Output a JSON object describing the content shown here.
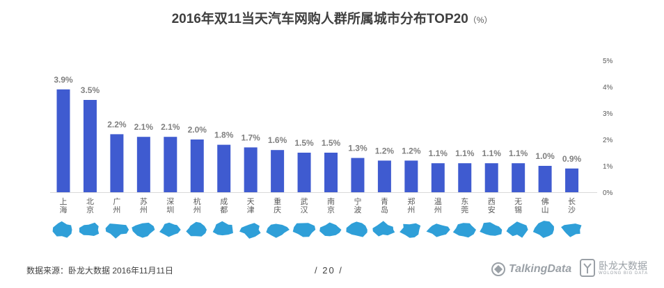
{
  "header": {
    "title": "2016年双11当天汽车网购人群所属城市分布TOP20",
    "unit": "（%）"
  },
  "chart_data": {
    "type": "bar",
    "categories": [
      "上海",
      "北京",
      "广州",
      "苏州",
      "深圳",
      "杭州",
      "成都",
      "天津",
      "重庆",
      "武汉",
      "南京",
      "宁波",
      "青岛",
      "郑州",
      "温州",
      "东莞",
      "西安",
      "无锡",
      "佛山",
      "长沙"
    ],
    "values": [
      3.9,
      3.5,
      2.2,
      2.1,
      2.1,
      2.0,
      1.8,
      1.7,
      1.6,
      1.5,
      1.5,
      1.3,
      1.2,
      1.2,
      1.1,
      1.1,
      1.1,
      1.1,
      1.0,
      0.9
    ],
    "data_labels": [
      "3.9%",
      "3.5%",
      "2.2%",
      "2.1%",
      "2.1%",
      "2.0%",
      "1.8%",
      "1.7%",
      "1.6%",
      "1.5%",
      "1.5%",
      "1.3%",
      "1.2%",
      "1.2%",
      "1.1%",
      "1.1%",
      "1.1%",
      "1.1%",
      "1.0%",
      "0.9%"
    ],
    "y_ticks": [
      "0%",
      "1%",
      "2%",
      "3%",
      "4%",
      "5%"
    ],
    "ylim": [
      0,
      5
    ],
    "y_axis_side": "right",
    "grid": false,
    "bar_color": "#3f5bd0",
    "map_color": "#2f9fd8"
  },
  "footer": {
    "source": "数据来源：卧龙大数据  2016年11月11日",
    "page": "/  20  /",
    "logo_talkingdata": "TalkingData",
    "logo_wolong_cn": "卧龙大数据",
    "logo_wolong_en": "WOLONG BIG DATA"
  }
}
